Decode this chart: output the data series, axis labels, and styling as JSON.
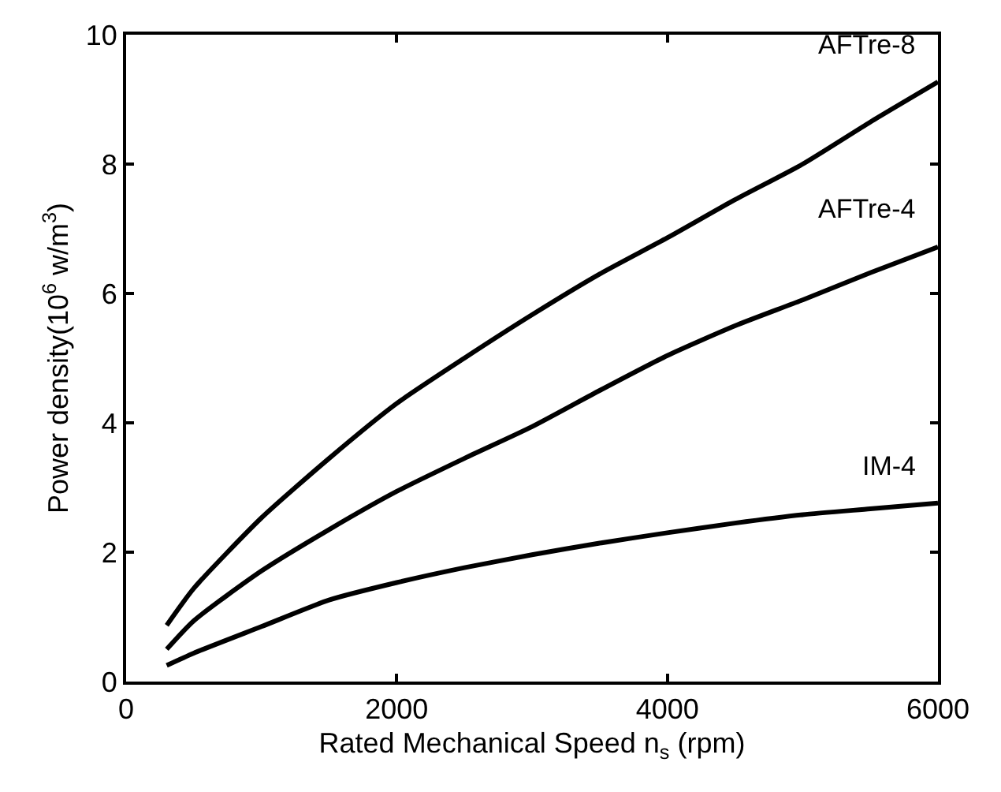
{
  "chart_data": {
    "type": "line",
    "xlabel": "Rated Mechanical Speed n$_{s}$ (rpm)",
    "ylabel": "Power density(10$^{6}$ w/m$^{3}$)",
    "xlim": [
      0,
      6000
    ],
    "ylim": [
      0,
      10
    ],
    "xticks": [
      0,
      2000,
      4000,
      6000
    ],
    "yticks": [
      0,
      2,
      4,
      6,
      8,
      10
    ],
    "grid": false,
    "legend": "right",
    "marker": "none",
    "line_style": "solid",
    "series": [
      {
        "name": "AFTre-8",
        "color": "#000000",
        "x": [
          300,
          500,
          1000,
          1500,
          2000,
          2500,
          3000,
          3500,
          4000,
          4500,
          5000,
          5500,
          6000
        ],
        "values": [
          0.87,
          1.44,
          2.53,
          3.45,
          4.3,
          5.0,
          5.67,
          6.3,
          6.86,
          7.45,
          8.0,
          8.65,
          9.27
        ]
      },
      {
        "name": "AFTre-4",
        "color": "#000000",
        "x": [
          300,
          500,
          1000,
          1500,
          2000,
          2500,
          3000,
          3500,
          4000,
          4500,
          5000,
          5500,
          6000
        ],
        "values": [
          0.5,
          0.94,
          1.71,
          2.35,
          2.94,
          3.45,
          3.94,
          4.5,
          5.04,
          5.5,
          5.9,
          6.32,
          6.72
        ]
      },
      {
        "name": "IM-4",
        "color": "#000000",
        "x": [
          300,
          500,
          1000,
          1500,
          2000,
          2500,
          3000,
          3500,
          4000,
          4500,
          5000,
          5500,
          6000
        ],
        "values": [
          0.25,
          0.44,
          0.85,
          1.26,
          1.53,
          1.76,
          1.96,
          2.14,
          2.3,
          2.45,
          2.58,
          2.67,
          2.76
        ]
      }
    ]
  }
}
